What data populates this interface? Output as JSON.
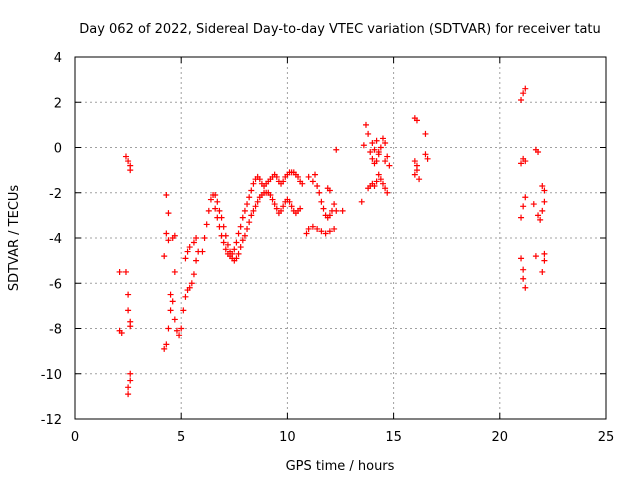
{
  "chart_data": {
    "type": "scatter",
    "title": "Day 062 of 2022, Sidereal Day-to-day VTEC variation (SDTVAR) for receiver tatu",
    "xlabel": "GPS time / hours",
    "ylabel": "SDTVAR / TECUs",
    "xlim": [
      0,
      25
    ],
    "ylim": [
      -12,
      4
    ],
    "xticks": [
      0,
      5,
      10,
      15,
      20,
      25
    ],
    "yticks": [
      -12,
      -10,
      -8,
      -6,
      -4,
      -2,
      0,
      2,
      4
    ],
    "xtick_labels": [
      "0",
      "5",
      "10",
      "15",
      "20",
      "25"
    ],
    "ytick_labels": [
      "-12",
      "-10",
      "-8",
      "-6",
      "-4",
      "-2",
      "0",
      "2",
      "4"
    ],
    "grid": true,
    "marker": "+",
    "color": "#ff0000",
    "series": [
      {
        "name": "SDTVAR",
        "points": [
          [
            2.1,
            -5.5
          ],
          [
            2.1,
            -8.1
          ],
          [
            2.2,
            -8.2
          ],
          [
            2.4,
            -0.4
          ],
          [
            2.5,
            -0.6
          ],
          [
            2.6,
            -0.8
          ],
          [
            2.6,
            -1.0
          ],
          [
            2.4,
            -5.5
          ],
          [
            2.5,
            -6.5
          ],
          [
            2.5,
            -7.2
          ],
          [
            2.6,
            -7.7
          ],
          [
            2.6,
            -7.9
          ],
          [
            2.5,
            -10.9
          ],
          [
            2.5,
            -10.6
          ],
          [
            2.6,
            -10.3
          ],
          [
            2.6,
            -10.0
          ],
          [
            4.2,
            -4.8
          ],
          [
            4.3,
            -3.8
          ],
          [
            4.3,
            -2.1
          ],
          [
            4.4,
            -2.9
          ],
          [
            4.4,
            -4.1
          ],
          [
            4.2,
            -8.9
          ],
          [
            4.3,
            -8.7
          ],
          [
            4.4,
            -8.0
          ],
          [
            4.5,
            -7.2
          ],
          [
            4.5,
            -6.5
          ],
          [
            4.6,
            -6.8
          ],
          [
            4.7,
            -7.6
          ],
          [
            4.8,
            -8.1
          ],
          [
            4.9,
            -8.3
          ],
          [
            5.0,
            -8.0
          ],
          [
            5.1,
            -7.2
          ],
          [
            5.2,
            -6.6
          ],
          [
            5.3,
            -6.3
          ],
          [
            5.4,
            -6.2
          ],
          [
            5.5,
            -6.0
          ],
          [
            4.6,
            -4.0
          ],
          [
            4.7,
            -3.9
          ],
          [
            4.7,
            -5.5
          ],
          [
            5.2,
            -4.9
          ],
          [
            5.3,
            -4.6
          ],
          [
            5.4,
            -4.4
          ],
          [
            5.6,
            -4.2
          ],
          [
            5.7,
            -4.0
          ],
          [
            5.6,
            -5.6
          ],
          [
            5.7,
            -5.0
          ],
          [
            5.8,
            -4.6
          ],
          [
            6.0,
            -4.6
          ],
          [
            6.1,
            -4.0
          ],
          [
            6.2,
            -3.4
          ],
          [
            6.3,
            -2.8
          ],
          [
            6.4,
            -2.3
          ],
          [
            6.5,
            -2.1
          ],
          [
            6.6,
            -2.1
          ],
          [
            6.7,
            -2.4
          ],
          [
            6.8,
            -2.8
          ],
          [
            6.9,
            -3.1
          ],
          [
            7.0,
            -3.5
          ],
          [
            7.1,
            -3.9
          ],
          [
            7.2,
            -4.3
          ],
          [
            7.3,
            -4.6
          ],
          [
            7.4,
            -4.9
          ],
          [
            7.5,
            -5.0
          ],
          [
            7.6,
            -4.9
          ],
          [
            7.7,
            -4.7
          ],
          [
            7.8,
            -4.4
          ],
          [
            7.9,
            -4.1
          ],
          [
            8.0,
            -3.9
          ],
          [
            8.1,
            -3.6
          ],
          [
            8.2,
            -3.3
          ],
          [
            8.3,
            -3.0
          ],
          [
            8.4,
            -2.8
          ],
          [
            8.5,
            -2.6
          ],
          [
            8.6,
            -2.4
          ],
          [
            8.7,
            -2.2
          ],
          [
            8.8,
            -2.1
          ],
          [
            8.9,
            -2.0
          ],
          [
            9.0,
            -2.0
          ],
          [
            9.1,
            -2.0
          ],
          [
            9.2,
            -2.1
          ],
          [
            9.3,
            -2.3
          ],
          [
            9.4,
            -2.5
          ],
          [
            9.5,
            -2.7
          ],
          [
            9.6,
            -2.9
          ],
          [
            9.7,
            -2.8
          ],
          [
            9.8,
            -2.6
          ],
          [
            9.9,
            -2.4
          ],
          [
            10.0,
            -2.3
          ],
          [
            10.1,
            -2.4
          ],
          [
            10.2,
            -2.6
          ],
          [
            10.3,
            -2.8
          ],
          [
            10.4,
            -2.9
          ],
          [
            10.5,
            -2.8
          ],
          [
            10.6,
            -2.7
          ],
          [
            6.6,
            -2.7
          ],
          [
            6.7,
            -3.1
          ],
          [
            6.8,
            -3.5
          ],
          [
            6.9,
            -3.9
          ],
          [
            7.0,
            -4.2
          ],
          [
            7.1,
            -4.5
          ],
          [
            7.2,
            -4.7
          ],
          [
            7.3,
            -4.8
          ],
          [
            7.4,
            -4.7
          ],
          [
            7.5,
            -4.5
          ],
          [
            7.6,
            -4.2
          ],
          [
            7.7,
            -3.8
          ],
          [
            7.8,
            -3.5
          ],
          [
            7.9,
            -3.1
          ],
          [
            8.0,
            -2.8
          ],
          [
            8.1,
            -2.5
          ],
          [
            8.2,
            -2.2
          ],
          [
            8.3,
            -1.9
          ],
          [
            8.4,
            -1.6
          ],
          [
            8.5,
            -1.4
          ],
          [
            8.6,
            -1.3
          ],
          [
            8.7,
            -1.4
          ],
          [
            8.8,
            -1.6
          ],
          [
            8.9,
            -1.7
          ],
          [
            9.0,
            -1.6
          ],
          [
            9.1,
            -1.5
          ],
          [
            9.2,
            -1.4
          ],
          [
            9.3,
            -1.3
          ],
          [
            9.4,
            -1.2
          ],
          [
            9.5,
            -1.3
          ],
          [
            9.6,
            -1.5
          ],
          [
            9.7,
            -1.6
          ],
          [
            9.8,
            -1.5
          ],
          [
            9.9,
            -1.3
          ],
          [
            10.0,
            -1.2
          ],
          [
            10.1,
            -1.1
          ],
          [
            10.2,
            -1.1
          ],
          [
            10.3,
            -1.1
          ],
          [
            10.4,
            -1.2
          ],
          [
            10.5,
            -1.3
          ],
          [
            10.6,
            -1.5
          ],
          [
            10.7,
            -1.6
          ],
          [
            11.0,
            -1.3
          ],
          [
            11.2,
            -1.5
          ],
          [
            11.3,
            -1.2
          ],
          [
            11.4,
            -1.7
          ],
          [
            11.5,
            -2.0
          ],
          [
            11.6,
            -2.4
          ],
          [
            11.7,
            -2.7
          ],
          [
            11.8,
            -3.0
          ],
          [
            11.9,
            -3.1
          ],
          [
            12.0,
            -3.0
          ],
          [
            12.1,
            -2.8
          ],
          [
            12.2,
            -2.5
          ],
          [
            10.9,
            -3.8
          ],
          [
            11.0,
            -3.6
          ],
          [
            11.2,
            -3.5
          ],
          [
            11.4,
            -3.6
          ],
          [
            11.6,
            -3.7
          ],
          [
            11.8,
            -3.8
          ],
          [
            12.0,
            -3.7
          ],
          [
            12.2,
            -3.6
          ],
          [
            11.9,
            -1.8
          ],
          [
            12.0,
            -1.9
          ],
          [
            12.3,
            -2.8
          ],
          [
            12.6,
            -2.8
          ],
          [
            12.3,
            -0.1
          ],
          [
            13.5,
            -2.4
          ],
          [
            13.6,
            0.1
          ],
          [
            13.7,
            1.0
          ],
          [
            13.8,
            0.6
          ],
          [
            13.9,
            -0.2
          ],
          [
            14.0,
            -0.5
          ],
          [
            14.1,
            -0.7
          ],
          [
            14.2,
            -0.6
          ],
          [
            14.3,
            -0.3
          ],
          [
            14.0,
            0.2
          ],
          [
            14.1,
            -0.1
          ],
          [
            14.2,
            0.3
          ],
          [
            14.3,
            -0.2
          ],
          [
            14.4,
            0.0
          ],
          [
            14.5,
            0.4
          ],
          [
            14.6,
            0.2
          ],
          [
            14.7,
            -0.4
          ],
          [
            14.8,
            -0.8
          ],
          [
            14.6,
            -0.6
          ],
          [
            13.8,
            -1.8
          ],
          [
            13.9,
            -1.7
          ],
          [
            14.0,
            -1.6
          ],
          [
            14.1,
            -1.7
          ],
          [
            14.2,
            -1.5
          ],
          [
            14.3,
            -1.2
          ],
          [
            14.4,
            -1.4
          ],
          [
            14.5,
            -1.6
          ],
          [
            14.6,
            -1.8
          ],
          [
            14.7,
            -2.0
          ],
          [
            16.0,
            1.3
          ],
          [
            16.1,
            1.2
          ],
          [
            16.0,
            -1.2
          ],
          [
            16.1,
            -1.0
          ],
          [
            16.2,
            -1.4
          ],
          [
            16.0,
            -0.6
          ],
          [
            16.1,
            -0.8
          ],
          [
            16.5,
            0.6
          ],
          [
            16.5,
            -0.3
          ],
          [
            16.6,
            -0.5
          ],
          [
            21.0,
            2.1
          ],
          [
            21.1,
            2.4
          ],
          [
            21.2,
            2.6
          ],
          [
            21.0,
            -0.7
          ],
          [
            21.1,
            -0.5
          ],
          [
            21.2,
            -0.6
          ],
          [
            21.0,
            -3.1
          ],
          [
            21.1,
            -2.6
          ],
          [
            21.2,
            -2.2
          ],
          [
            21.0,
            -4.9
          ],
          [
            21.1,
            -5.4
          ],
          [
            21.1,
            -5.8
          ],
          [
            21.2,
            -6.2
          ],
          [
            21.7,
            -0.1
          ],
          [
            21.8,
            -0.2
          ],
          [
            21.6,
            -2.5
          ],
          [
            21.8,
            -3.0
          ],
          [
            21.9,
            -3.2
          ],
          [
            22.0,
            -2.8
          ],
          [
            22.1,
            -2.4
          ],
          [
            22.1,
            -1.9
          ],
          [
            22.0,
            -1.7
          ],
          [
            21.7,
            -4.8
          ],
          [
            22.1,
            -5.0
          ],
          [
            22.0,
            -5.5
          ],
          [
            22.1,
            -4.7
          ]
        ]
      }
    ]
  }
}
